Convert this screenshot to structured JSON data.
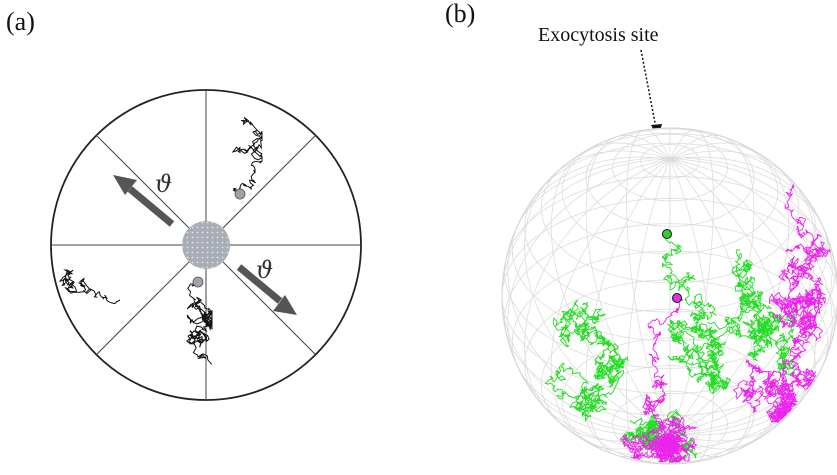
{
  "panels": {
    "a": {
      "label": "(a)",
      "angle_symbol": "ϑ",
      "sectors": 8
    },
    "b": {
      "label": "(b)",
      "annotation": "Exocytosis site"
    }
  },
  "colors": {
    "trajectory_a": "#111111",
    "arrow": "#555555",
    "center_disk": "#a9adb6",
    "sphere_grid": "#dedede",
    "green_trajectory": "#22dd22",
    "magenta_trajectory": "#ee22ee",
    "green_marker": "#33cc33",
    "magenta_marker": "#dd33dd"
  }
}
